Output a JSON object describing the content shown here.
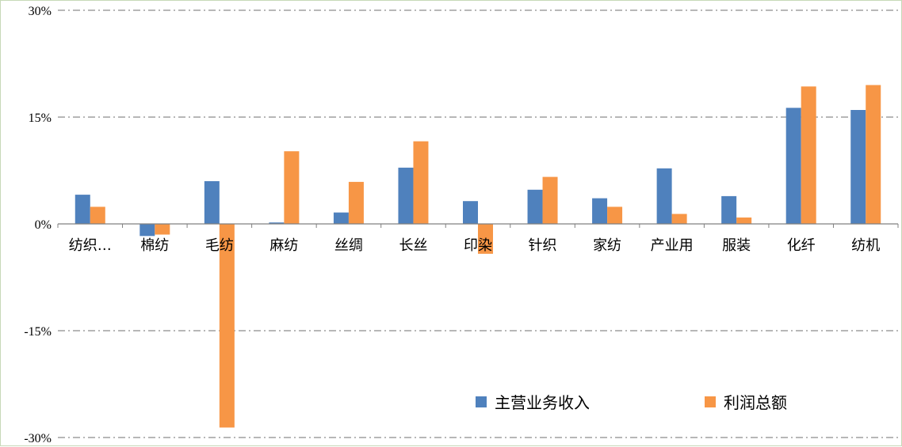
{
  "chart_data": {
    "type": "bar",
    "title": "",
    "xlabel": "",
    "ylabel": "",
    "ylim": [
      -30,
      30
    ],
    "yticks": [
      30,
      15,
      0,
      -15,
      -30
    ],
    "ytick_labels": [
      "30%",
      "15%",
      "0%",
      "-15%",
      "-30%"
    ],
    "grid": true,
    "legend_position": "bottom-right",
    "categories": [
      "纺织…",
      "棉纺",
      "毛纺",
      "麻纺",
      "丝绸",
      "长丝",
      "印染",
      "针织",
      "家纺",
      "产业用",
      "服装",
      "化纤",
      "纺机"
    ],
    "series": [
      {
        "name": "主营业务收入",
        "color": "#4f81bd",
        "values": [
          4.1,
          -1.7,
          6.0,
          0.2,
          1.6,
          7.9,
          3.2,
          4.8,
          3.6,
          7.8,
          3.9,
          16.3,
          16.0
        ]
      },
      {
        "name": "利润总额",
        "color": "#f79646",
        "values": [
          2.4,
          -1.5,
          -28.6,
          10.2,
          5.9,
          11.6,
          -4.2,
          6.6,
          2.4,
          1.4,
          0.9,
          19.3,
          19.5
        ]
      }
    ]
  }
}
